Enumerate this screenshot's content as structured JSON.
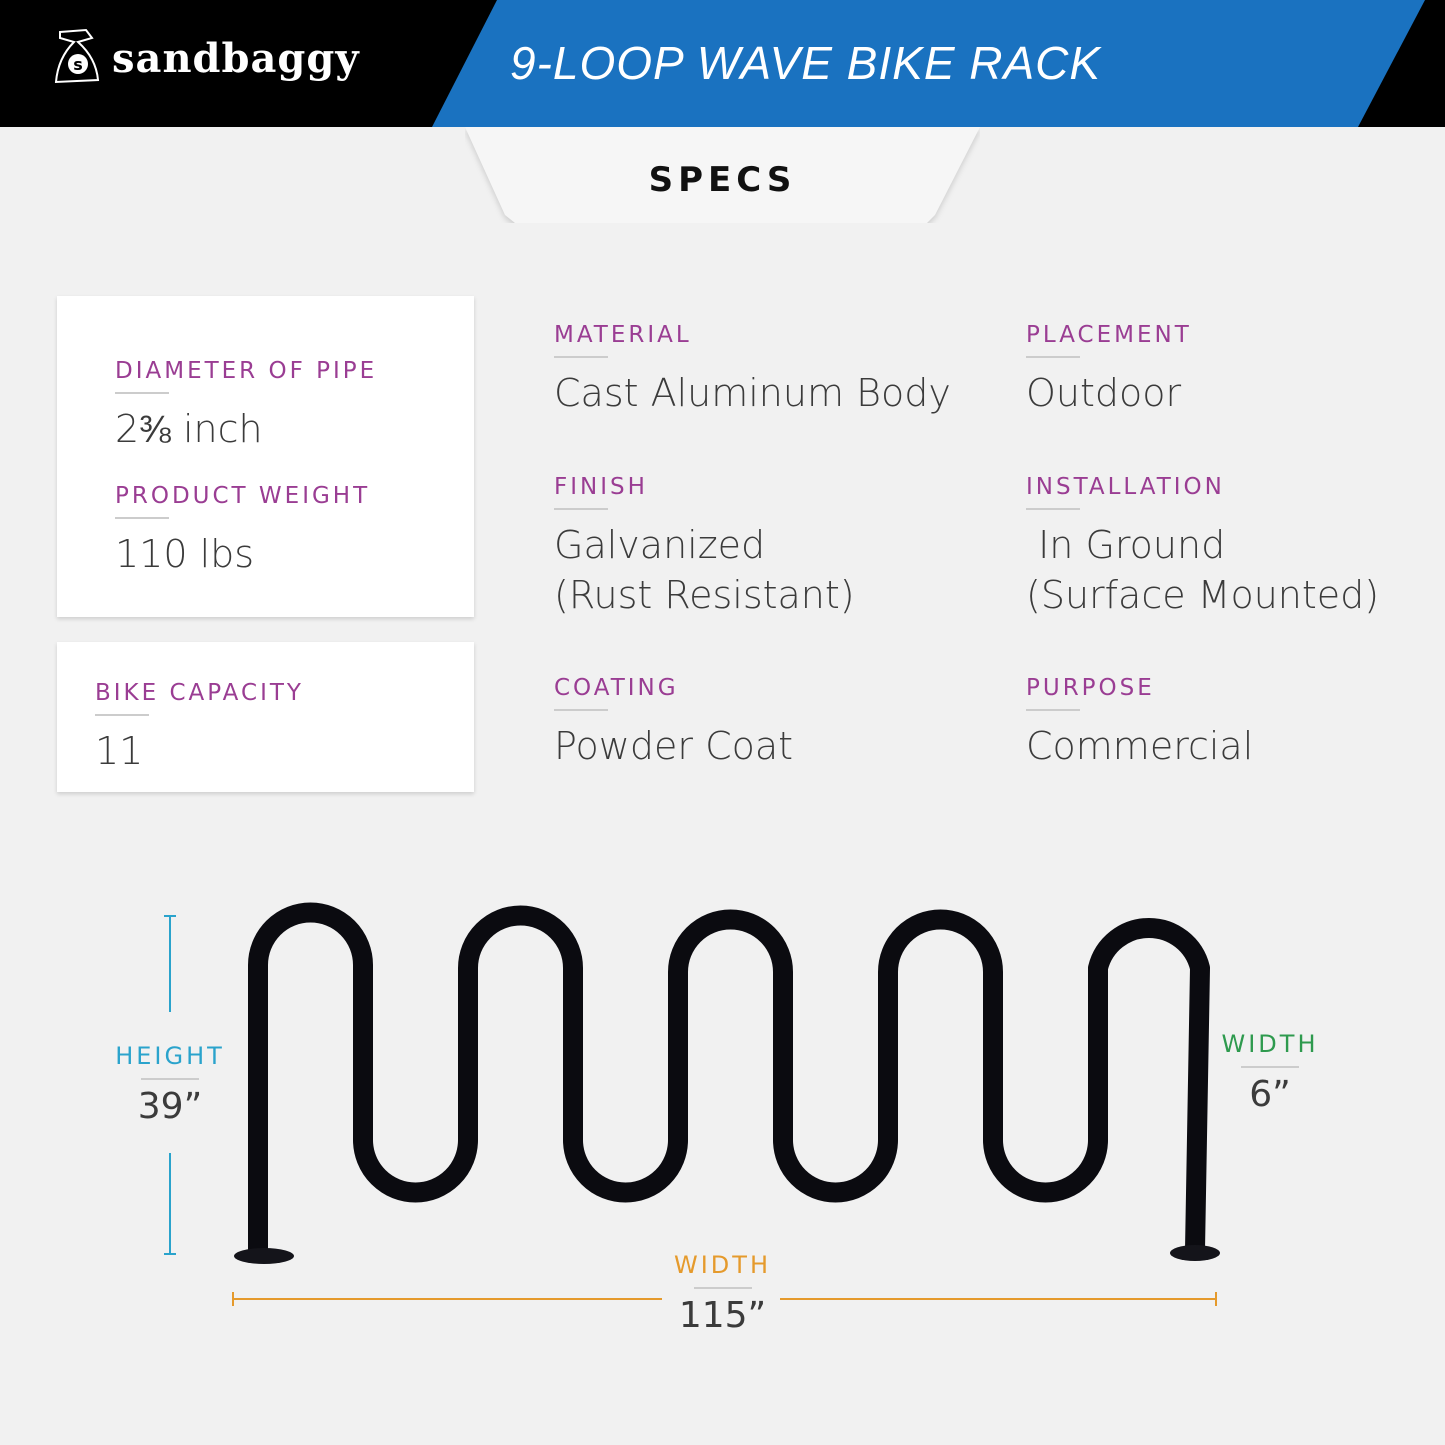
{
  "brand": {
    "logo_text": "sandbaggy",
    "logo_icon": "sandbag-icon"
  },
  "header": {
    "title": "9-LOOP WAVE BIKE RACK",
    "specs_label": "SPECS"
  },
  "colors": {
    "blue": "#1a72c0",
    "label": "#9a3d93",
    "height": "#2aa3cc",
    "width_side": "#2e9a4e",
    "width_length": "#e59a2c"
  },
  "cards": [
    {
      "label": "DIAMETER OF PIPE",
      "value": "2⅜ inch"
    },
    {
      "label": "PRODUCT WEIGHT",
      "value": "110 lbs"
    },
    {
      "label": "BIKE CAPACITY",
      "value": "11"
    }
  ],
  "specs": [
    {
      "label": "MATERIAL",
      "value": "Cast Aluminum Body"
    },
    {
      "label": "PLACEMENT",
      "value": "Outdoor"
    },
    {
      "label": "FINISH",
      "value": "Galvanized",
      "value2": "(Rust Resistant)"
    },
    {
      "label": "INSTALLATION",
      "value": " In Ground",
      "value2": "(Surface Mounted)"
    },
    {
      "label": "COATING",
      "value": "Powder Coat"
    },
    {
      "label": "PURPOSE",
      "value": "Commercial"
    }
  ],
  "dimensions": {
    "height": {
      "label": "HEIGHT",
      "value": "39”"
    },
    "depth": {
      "label": "WIDTH",
      "value": "6”"
    },
    "length": {
      "label": "WIDTH",
      "value": "115”"
    }
  }
}
